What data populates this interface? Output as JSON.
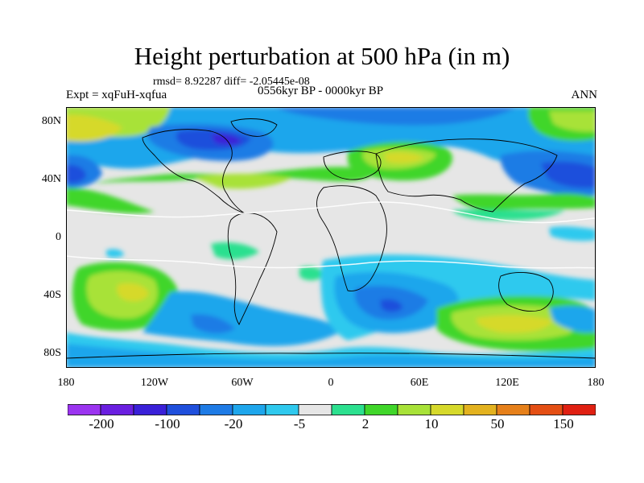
{
  "title": "Height perturbation at 500 hPa (in m)",
  "stats": "rmsd= 8.92287 diff= -2.05445e-08",
  "expt": "Expt = xqFuH-xqfua",
  "period": "0556kyr BP - 0000kyr BP",
  "season": "ANN",
  "lat_ticks": [
    "80N",
    "40N",
    "0",
    "40S",
    "80S"
  ],
  "lon_ticks": [
    "180",
    "120W",
    "60W",
    "0",
    "60E",
    "120E",
    "180"
  ],
  "colorbar": {
    "colors": [
      "#9b34f0",
      "#6a1fe0",
      "#3a20d8",
      "#1f4fdc",
      "#1e7be5",
      "#1ea6ec",
      "#2fc9ee",
      "#e6e6e6",
      "#2ce08f",
      "#40d62a",
      "#a8e238",
      "#d6d92b",
      "#e3b21f",
      "#e6801a",
      "#e44f14",
      "#e02012"
    ],
    "labels": [
      "-200",
      "-100",
      "-20",
      "-5",
      "2",
      "10",
      "50",
      "150"
    ]
  },
  "field_colors": {
    "background": "#e6e6e6",
    "coast": "#000000",
    "contour": "#ffffff"
  }
}
